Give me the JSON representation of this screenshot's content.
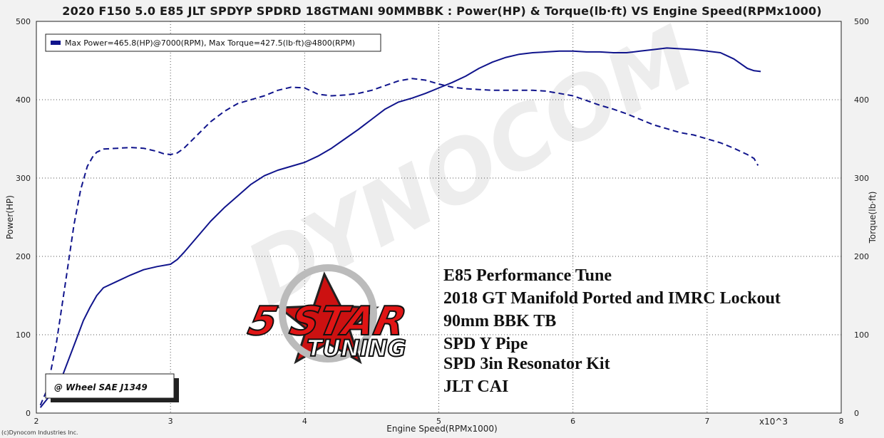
{
  "title": "2020 F150 5.0 E85 JLT SPDYP SPDRD 18GTMANI 90MMBBK : Power(HP) & Torque(lb·ft) VS Engine Speed(RPMx1000)",
  "footer": "(c)Dynocom Industries Inc.",
  "watermark": "DYNOCOM",
  "logo": {
    "line1": "5 STAR",
    "line2": "TUNING"
  },
  "notes": [
    "E85 Performance Tune",
    "2018 GT Manifold Ported and IMRC Lockout",
    "90mm BBK TB",
    "SPD Y Pipe",
    "SPD 3in Resonator Kit",
    "JLT CAI"
  ],
  "standard_label": "@ Wheel SAE J1349",
  "colors": {
    "series": "#10148c",
    "grid": "#555555",
    "plot_bg": "#ffffff",
    "page_bg": "#f2f2f2"
  },
  "chart_data": {
    "type": "line",
    "xlabel": "Engine Speed(RPMx1000)",
    "ylabel_left": "Power(HP)",
    "ylabel_right": "Torque(lb·ft)",
    "x_multiplier_label": "x10^3",
    "xlim": [
      2,
      8
    ],
    "ylim": [
      0,
      500
    ],
    "x_ticks": [
      2,
      3,
      4,
      5,
      6,
      7,
      8
    ],
    "y_ticks": [
      0,
      100,
      200,
      300,
      400,
      500
    ],
    "grid": true,
    "legend_position": "top-left",
    "legend": "Max Power=465.8(HP)@7000(RPM), Max Torque=427.5(lb·ft)@4800(RPM)",
    "series": [
      {
        "name": "Power",
        "style": "solid",
        "x": [
          2.03,
          2.1,
          2.2,
          2.3,
          2.35,
          2.4,
          2.45,
          2.5,
          2.6,
          2.7,
          2.8,
          2.9,
          3.0,
          3.05,
          3.1,
          3.2,
          3.3,
          3.4,
          3.5,
          3.6,
          3.7,
          3.8,
          3.9,
          4.0,
          4.1,
          4.2,
          4.3,
          4.4,
          4.5,
          4.6,
          4.7,
          4.8,
          4.9,
          5.0,
          5.1,
          5.2,
          5.3,
          5.4,
          5.5,
          5.6,
          5.7,
          5.8,
          5.9,
          6.0,
          6.1,
          6.2,
          6.3,
          6.4,
          6.5,
          6.6,
          6.7,
          6.8,
          6.9,
          7.0,
          7.1,
          7.2,
          7.3,
          7.35,
          7.4
        ],
        "y": [
          7,
          22,
          50,
          95,
          118,
          135,
          150,
          160,
          168,
          176,
          183,
          187,
          190,
          196,
          205,
          225,
          245,
          262,
          277,
          292,
          303,
          310,
          315,
          320,
          328,
          338,
          350,
          362,
          375,
          388,
          397,
          402,
          408,
          415,
          422,
          430,
          440,
          448,
          454,
          458,
          460,
          461,
          462,
          462,
          461,
          461,
          460,
          460,
          462,
          464,
          466,
          465,
          464,
          462,
          460,
          452,
          440,
          437,
          436
        ],
        "y_fixed_note": "values in HP"
      },
      {
        "name": "Torque",
        "style": "dashed",
        "x": [
          2.03,
          2.08,
          2.15,
          2.22,
          2.28,
          2.33,
          2.38,
          2.42,
          2.45,
          2.5,
          2.6,
          2.7,
          2.8,
          2.9,
          2.95,
          3.0,
          3.05,
          3.1,
          3.2,
          3.3,
          3.4,
          3.5,
          3.6,
          3.7,
          3.8,
          3.9,
          4.0,
          4.1,
          4.2,
          4.3,
          4.4,
          4.5,
          4.6,
          4.7,
          4.8,
          4.9,
          5.0,
          5.1,
          5.2,
          5.3,
          5.4,
          5.5,
          5.6,
          5.7,
          5.8,
          5.9,
          6.0,
          6.1,
          6.2,
          6.3,
          6.4,
          6.5,
          6.6,
          6.7,
          6.8,
          6.9,
          7.0,
          7.1,
          7.2,
          7.3,
          7.35,
          7.38
        ],
        "y": [
          10,
          30,
          90,
          170,
          240,
          285,
          315,
          327,
          333,
          337,
          338,
          339,
          338,
          334,
          331,
          330,
          332,
          338,
          355,
          372,
          385,
          395,
          400,
          405,
          412,
          416,
          415,
          407,
          405,
          406,
          408,
          412,
          418,
          424,
          427,
          425,
          420,
          416,
          414,
          413,
          412,
          412,
          412,
          412,
          411,
          408,
          405,
          399,
          393,
          388,
          382,
          375,
          368,
          363,
          358,
          355,
          350,
          345,
          338,
          330,
          325,
          316
        ]
      }
    ]
  }
}
